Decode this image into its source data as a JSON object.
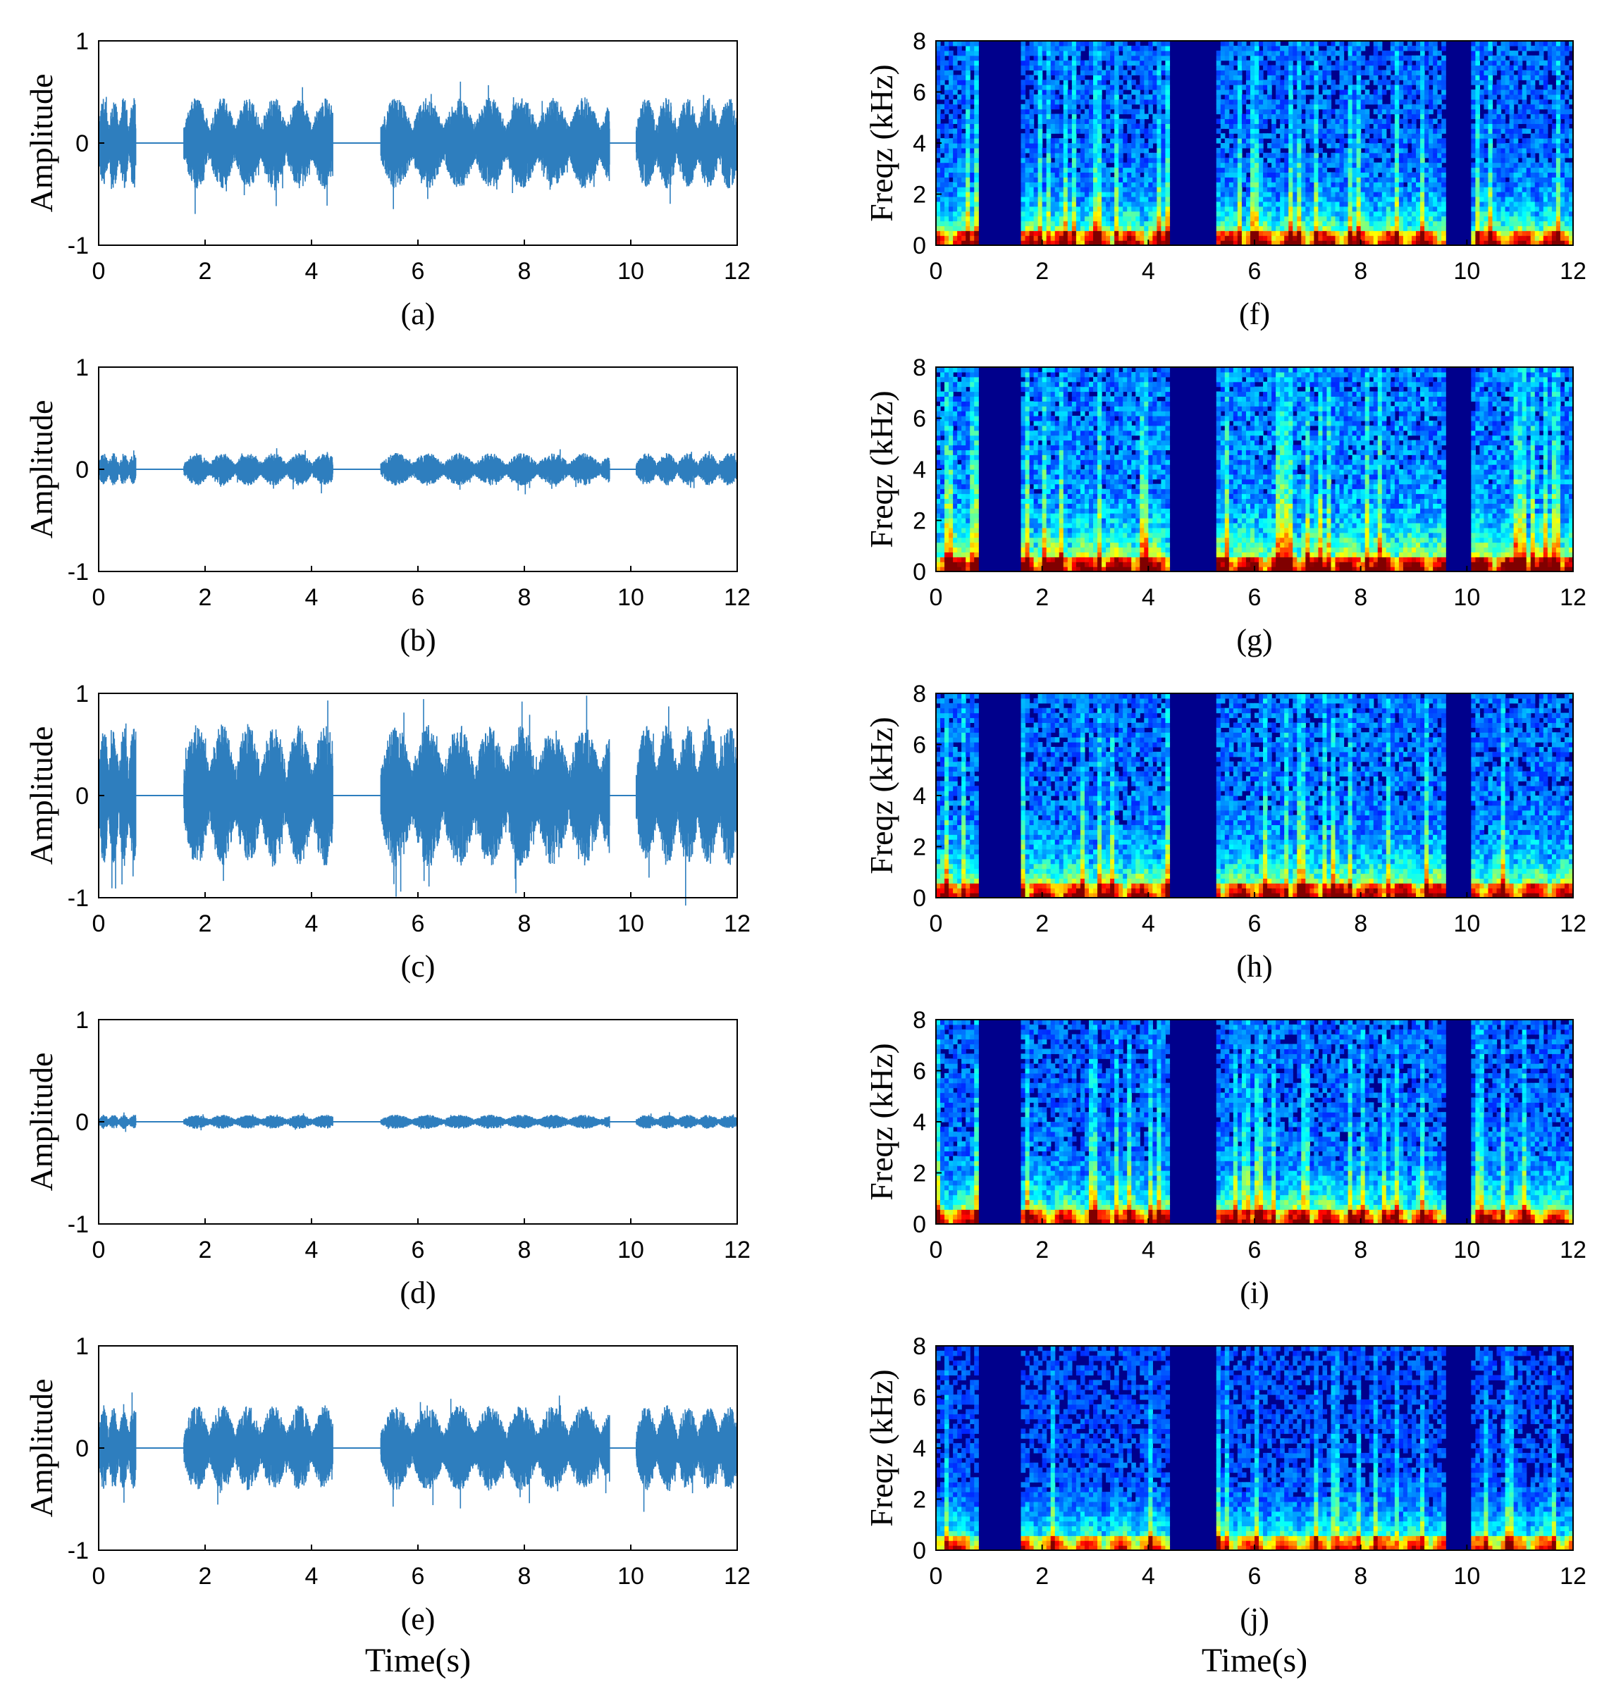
{
  "figure": {
    "x_axis_label": "Time(s)",
    "waveform_ylabel": "Amplitude",
    "spectrogram_ylabel": "Freqz (kHz)"
  },
  "chart_data": [
    {
      "id": "a",
      "type": "line",
      "label": "(a)",
      "xlabel": "",
      "ylabel": "Amplitude",
      "xlim": [
        0,
        12
      ],
      "ylim": [
        -1,
        1
      ],
      "xticks": [
        0,
        2,
        4,
        6,
        8,
        10,
        12
      ],
      "yticks": [
        -1,
        0,
        1
      ],
      "line_color": "#2e7ebe",
      "peak_amplitude": 0.45,
      "segments": [
        [
          0.0,
          0.7
        ],
        [
          1.6,
          4.4
        ],
        [
          5.3,
          9.6
        ],
        [
          10.1,
          12.0
        ]
      ]
    },
    {
      "id": "b",
      "type": "line",
      "label": "(b)",
      "xlabel": "",
      "ylabel": "Amplitude",
      "xlim": [
        0,
        12
      ],
      "ylim": [
        -1,
        1
      ],
      "xticks": [
        0,
        2,
        4,
        6,
        8,
        10,
        12
      ],
      "yticks": [
        -1,
        0,
        1
      ],
      "line_color": "#2e7ebe",
      "peak_amplitude": 0.16,
      "segments": [
        [
          0.0,
          0.7
        ],
        [
          1.6,
          4.4
        ],
        [
          5.3,
          9.6
        ],
        [
          10.1,
          12.0
        ]
      ]
    },
    {
      "id": "c",
      "type": "line",
      "label": "(c)",
      "xlabel": "",
      "ylabel": "Amplitude",
      "xlim": [
        0,
        12
      ],
      "ylim": [
        -1,
        1
      ],
      "xticks": [
        0,
        2,
        4,
        6,
        8,
        10,
        12
      ],
      "yticks": [
        -1,
        0,
        1
      ],
      "line_color": "#2e7ebe",
      "peak_amplitude": 0.7,
      "segments": [
        [
          0.0,
          0.7
        ],
        [
          1.6,
          4.4
        ],
        [
          5.3,
          9.6
        ],
        [
          10.1,
          12.0
        ]
      ]
    },
    {
      "id": "d",
      "type": "line",
      "label": "(d)",
      "xlabel": "",
      "ylabel": "Amplitude",
      "xlim": [
        0,
        12
      ],
      "ylim": [
        -1,
        1
      ],
      "xticks": [
        0,
        2,
        4,
        6,
        8,
        10,
        12
      ],
      "yticks": [
        -1,
        0,
        1
      ],
      "line_color": "#2e7ebe",
      "peak_amplitude": 0.07,
      "segments": [
        [
          0.0,
          0.7
        ],
        [
          1.6,
          4.4
        ],
        [
          5.3,
          9.6
        ],
        [
          10.1,
          12.0
        ]
      ]
    },
    {
      "id": "e",
      "type": "line",
      "label": "(e)",
      "xlabel": "Time(s)",
      "ylabel": "Amplitude",
      "xlim": [
        0,
        12
      ],
      "ylim": [
        -1,
        1
      ],
      "xticks": [
        0,
        2,
        4,
        6,
        8,
        10,
        12
      ],
      "yticks": [
        -1,
        0,
        1
      ],
      "line_color": "#2e7ebe",
      "peak_amplitude": 0.42,
      "segments": [
        [
          0.0,
          0.7
        ],
        [
          1.6,
          4.4
        ],
        [
          5.3,
          9.6
        ],
        [
          10.1,
          12.0
        ]
      ]
    },
    {
      "id": "f",
      "type": "heatmap",
      "label": "(f)",
      "xlabel": "",
      "ylabel": "Freqz (kHz)",
      "xlim": [
        0,
        12
      ],
      "ylim": [
        0,
        8
      ],
      "xticks": [
        0,
        2,
        4,
        6,
        8,
        10,
        12
      ],
      "yticks": [
        0,
        2,
        4,
        6,
        8
      ],
      "colormap": "jet",
      "intensity": 1.0,
      "silent_intervals": [
        [
          0.8,
          1.6
        ],
        [
          4.4,
          5.3
        ],
        [
          9.6,
          10.1
        ]
      ]
    },
    {
      "id": "g",
      "type": "heatmap",
      "label": "(g)",
      "xlabel": "",
      "ylabel": "Freqz (kHz)",
      "xlim": [
        0,
        12
      ],
      "ylim": [
        0,
        8
      ],
      "xticks": [
        0,
        2,
        4,
        6,
        8,
        10,
        12
      ],
      "yticks": [
        0,
        2,
        4,
        6,
        8
      ],
      "colormap": "jet",
      "intensity": 1.15,
      "silent_intervals": [
        [
          0.8,
          1.6
        ],
        [
          4.4,
          5.3
        ],
        [
          9.6,
          10.1
        ]
      ]
    },
    {
      "id": "h",
      "type": "heatmap",
      "label": "(h)",
      "xlabel": "",
      "ylabel": "Freqz (kHz)",
      "xlim": [
        0,
        12
      ],
      "ylim": [
        0,
        8
      ],
      "xticks": [
        0,
        2,
        4,
        6,
        8,
        10,
        12
      ],
      "yticks": [
        0,
        2,
        4,
        6,
        8
      ],
      "colormap": "jet",
      "intensity": 1.05,
      "silent_intervals": [
        [
          0.8,
          1.6
        ],
        [
          4.4,
          5.3
        ],
        [
          9.6,
          10.1
        ]
      ]
    },
    {
      "id": "i",
      "type": "heatmap",
      "label": "(i)",
      "xlabel": "",
      "ylabel": "Freqz (kHz)",
      "xlim": [
        0,
        12
      ],
      "ylim": [
        0,
        8
      ],
      "xticks": [
        0,
        2,
        4,
        6,
        8,
        10,
        12
      ],
      "yticks": [
        0,
        2,
        4,
        6,
        8
      ],
      "colormap": "jet",
      "intensity": 1.0,
      "silent_intervals": [
        [
          0.8,
          1.6
        ],
        [
          4.4,
          5.3
        ],
        [
          9.6,
          10.1
        ]
      ]
    },
    {
      "id": "j",
      "type": "heatmap",
      "label": "(j)",
      "xlabel": "Time(s)",
      "ylabel": "Freqz (kHz)",
      "xlim": [
        0,
        12
      ],
      "ylim": [
        0,
        8
      ],
      "xticks": [
        0,
        2,
        4,
        6,
        8,
        10,
        12
      ],
      "yticks": [
        0,
        2,
        4,
        6,
        8
      ],
      "colormap": "jet",
      "intensity": 0.85,
      "silent_intervals": [
        [
          0.8,
          1.6
        ],
        [
          4.4,
          5.3
        ],
        [
          9.6,
          10.1
        ]
      ]
    }
  ]
}
